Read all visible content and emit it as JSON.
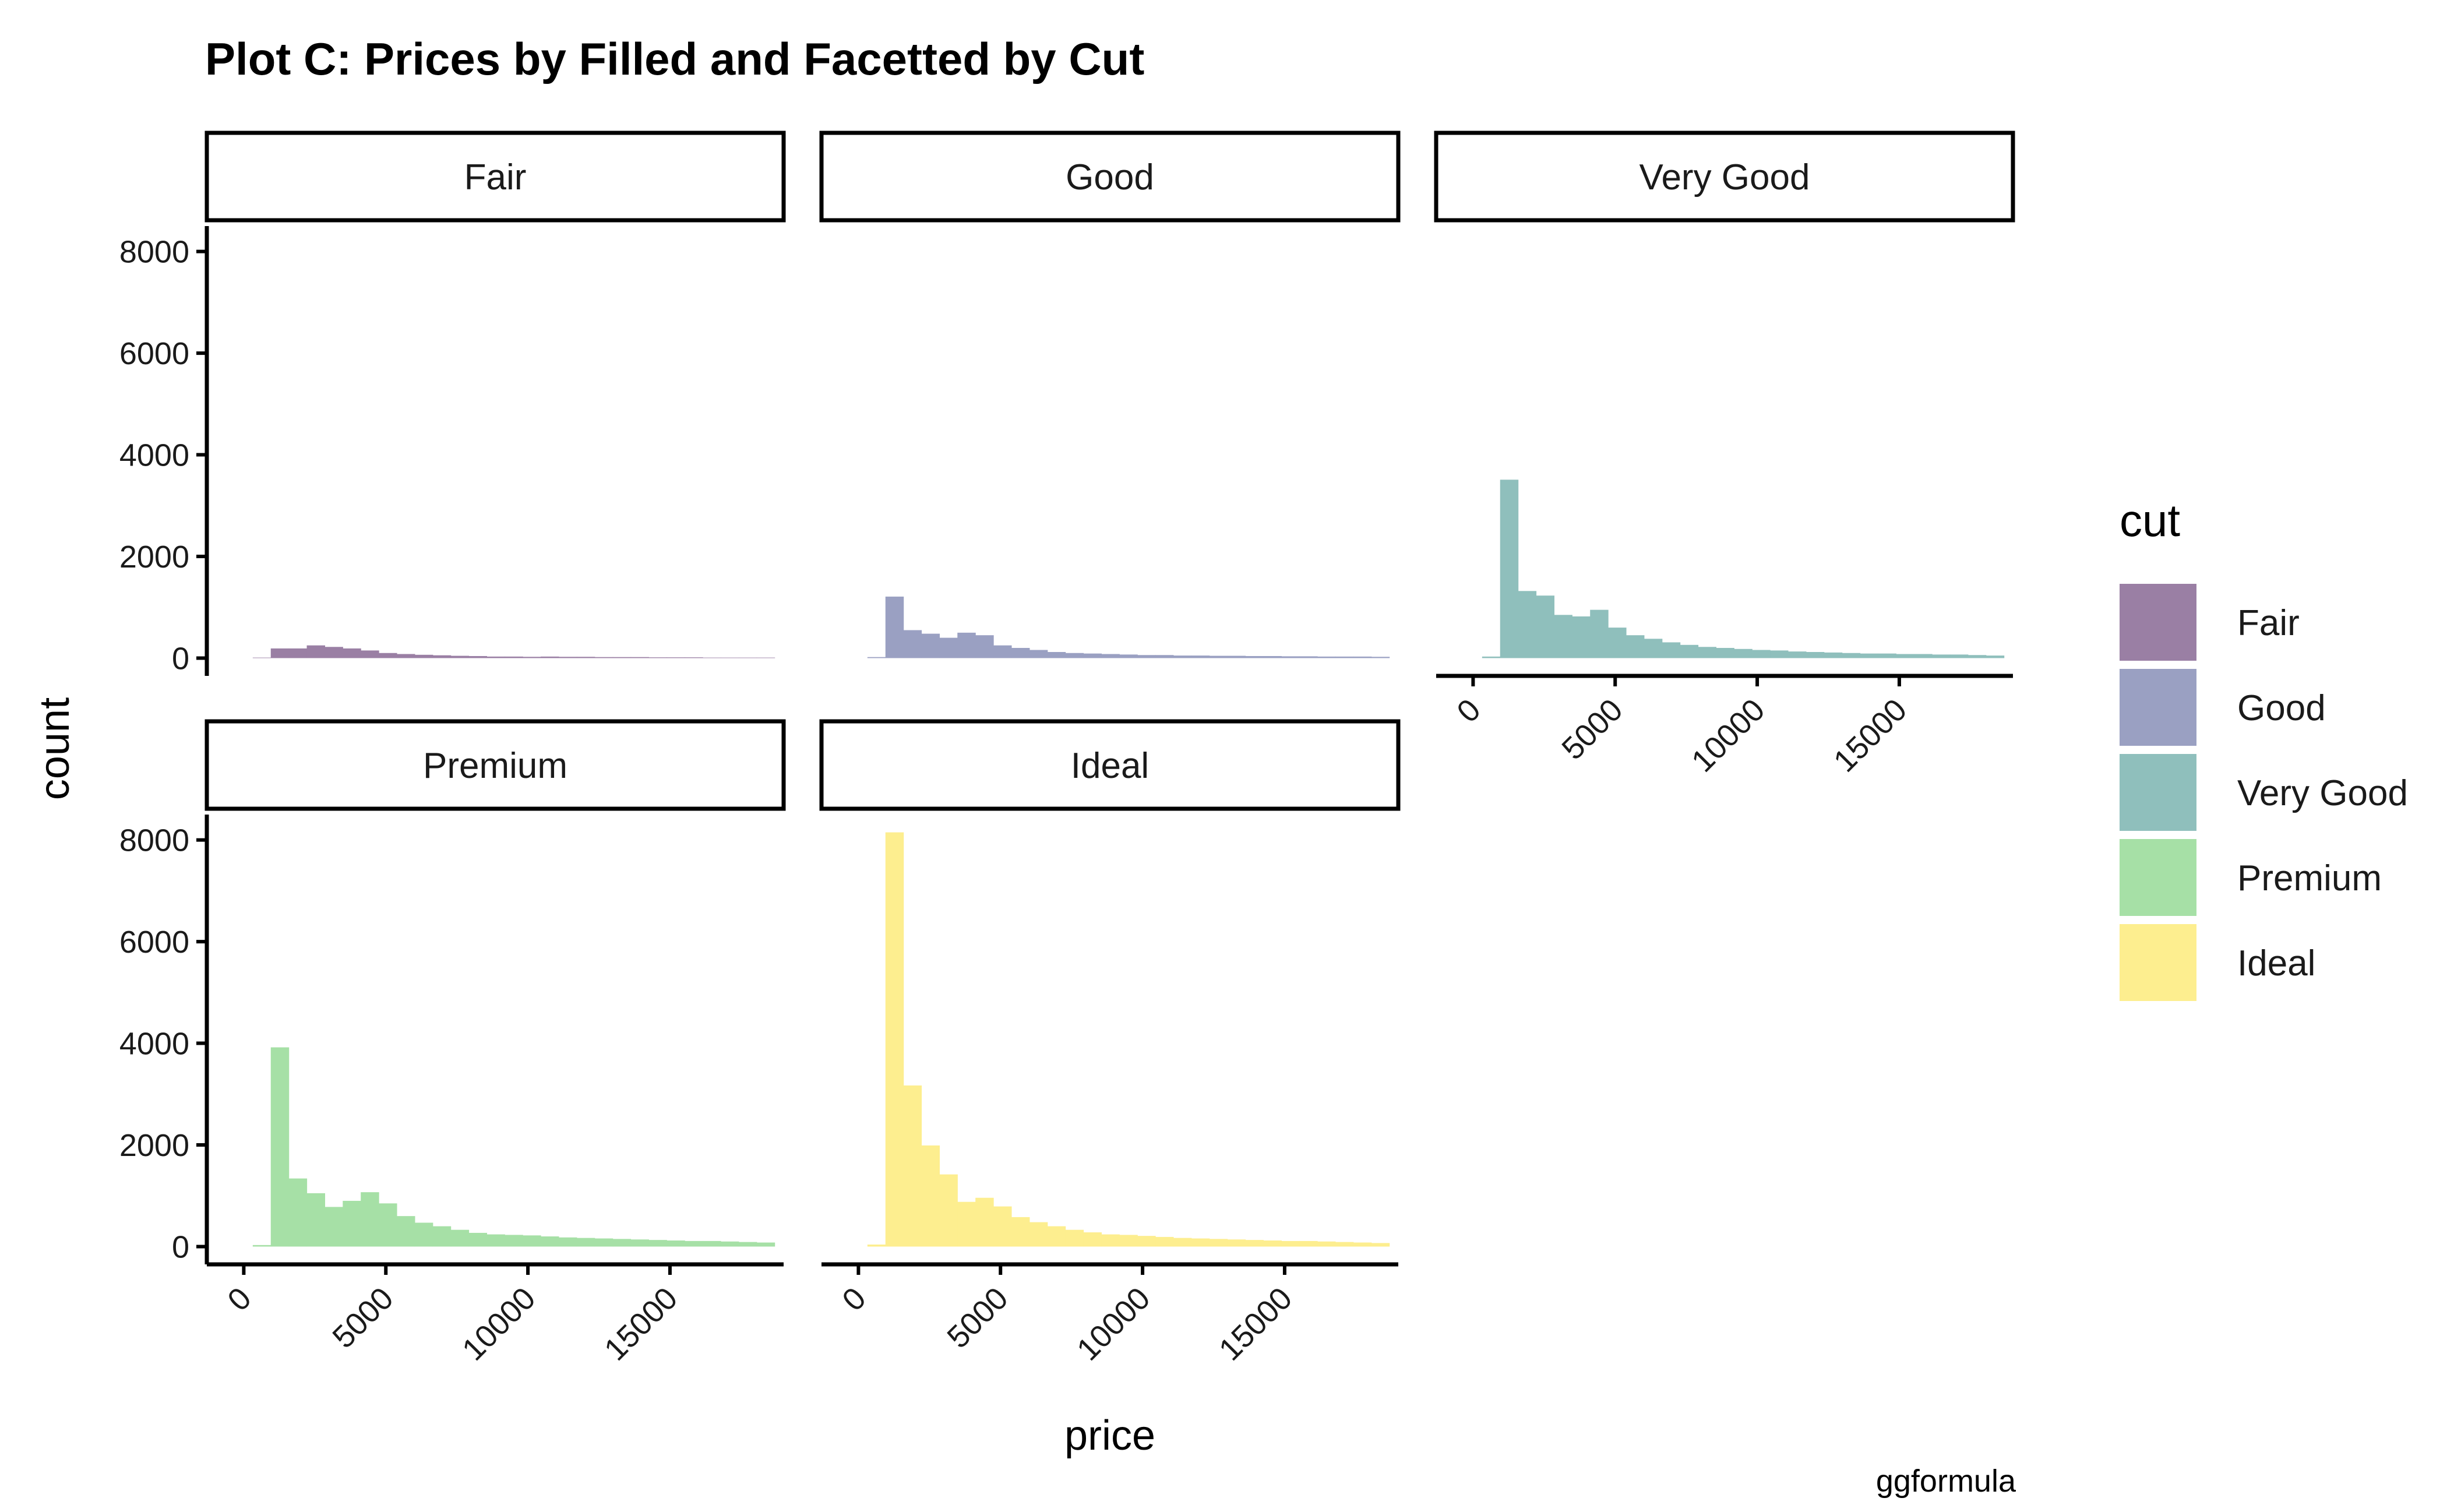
{
  "chart_data": {
    "type": "bar",
    "title": "Plot C: Prices by Filled and Facetted by Cut",
    "xlabel": "price",
    "ylabel": "count",
    "caption": "ggformula",
    "legend_title": "cut",
    "legend_position": "right",
    "grid": false,
    "xlim": [
      -1300,
      19000
    ],
    "ylim": [
      -350,
      8500
    ],
    "x_ticks": [
      0,
      5000,
      10000,
      15000
    ],
    "x_tick_labels": [
      "0",
      "5000",
      "10000",
      "15000"
    ],
    "y_ticks": [
      0,
      2000,
      4000,
      6000,
      8000
    ],
    "y_tick_labels": [
      "0",
      "2000",
      "4000",
      "6000",
      "8000"
    ],
    "bin_centers": [
      0,
      633,
      1267,
      1900,
      2534,
      3167,
      3800,
      4434,
      5067,
      5701,
      6334,
      6967,
      7601,
      8234,
      8867,
      9501,
      10134,
      10767,
      11401,
      12034,
      12668,
      13301,
      13934,
      14568,
      15201,
      15835,
      16468,
      17101,
      17735,
      18368
    ],
    "series": [
      {
        "name": "Fair",
        "color": "#9a7fa4",
        "values": [
          0,
          10,
          190,
          190,
          250,
          220,
          190,
          150,
          100,
          80,
          65,
          55,
          45,
          40,
          30,
          30,
          25,
          30,
          25,
          25,
          20,
          20,
          20,
          15,
          15,
          15,
          10,
          10,
          10,
          10
        ]
      },
      {
        "name": "Good",
        "color": "#9aa0c2",
        "values": [
          0,
          20,
          1210,
          550,
          480,
          400,
          500,
          450,
          250,
          200,
          160,
          120,
          100,
          90,
          80,
          70,
          60,
          60,
          50,
          50,
          45,
          45,
          40,
          40,
          35,
          35,
          30,
          30,
          30,
          25
        ]
      },
      {
        "name": "Very Good",
        "color": "#8fbfbc",
        "values": [
          0,
          30,
          3510,
          1320,
          1230,
          850,
          820,
          950,
          600,
          450,
          380,
          310,
          260,
          220,
          200,
          180,
          160,
          150,
          130,
          120,
          110,
          100,
          90,
          90,
          80,
          80,
          70,
          70,
          60,
          50
        ]
      },
      {
        "name": "Premium",
        "color": "#a6e0a6",
        "values": [
          0,
          30,
          3920,
          1340,
          1050,
          780,
          900,
          1070,
          850,
          600,
          470,
          400,
          330,
          270,
          240,
          230,
          220,
          200,
          180,
          170,
          160,
          150,
          140,
          130,
          120,
          110,
          110,
          100,
          90,
          80
        ]
      },
      {
        "name": "Ideal",
        "color": "#fdee8f",
        "values": [
          0,
          40,
          8150,
          3170,
          1990,
          1420,
          880,
          960,
          790,
          580,
          480,
          400,
          330,
          280,
          240,
          230,
          210,
          190,
          170,
          160,
          150,
          140,
          130,
          120,
          110,
          110,
          100,
          90,
          80,
          70
        ]
      }
    ]
  }
}
